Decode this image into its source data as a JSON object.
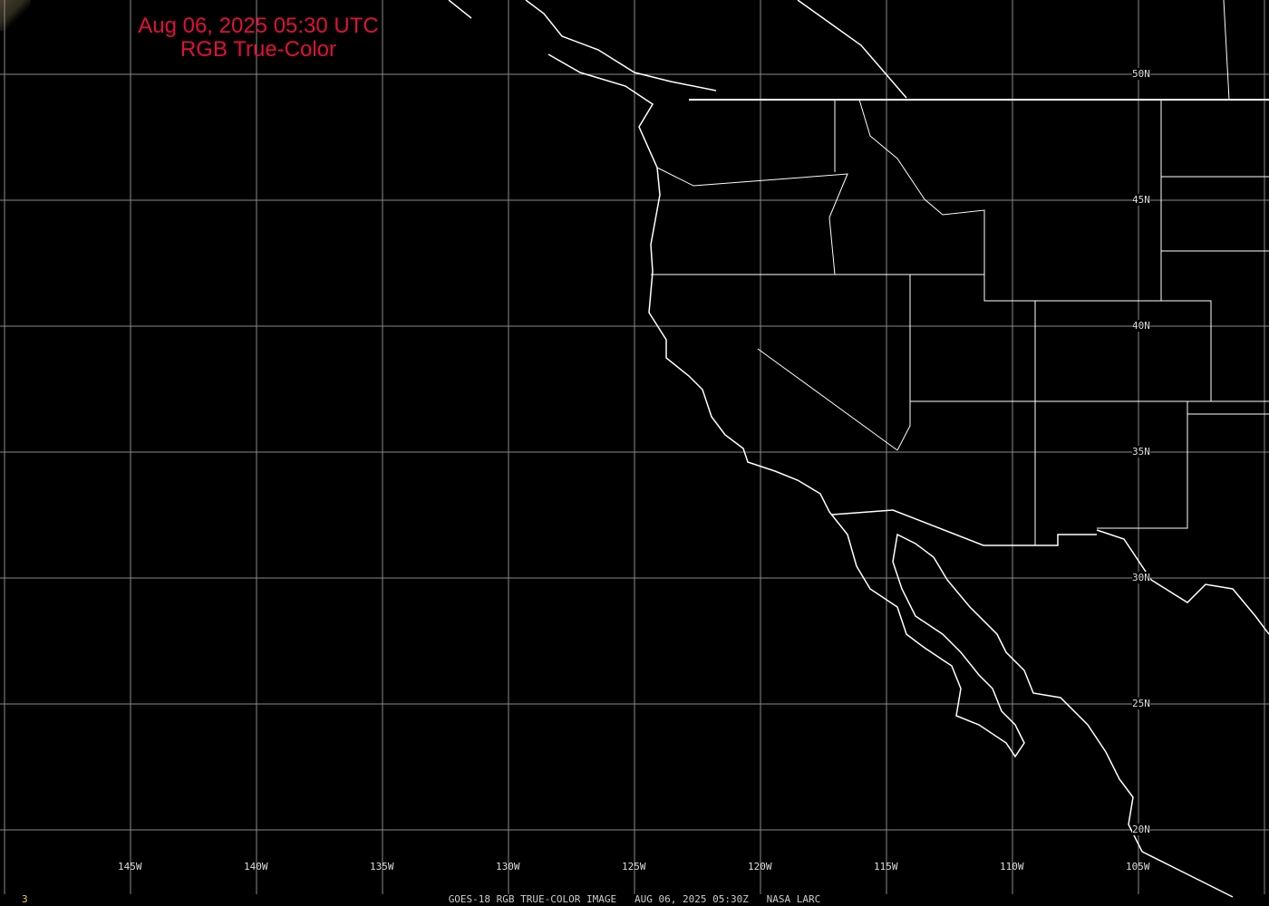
{
  "title": {
    "line1": "Aug 06, 2025 05:30 UTC",
    "line2": "RGB True-Color",
    "color": "#e0103a"
  },
  "longitude_labels": [
    "145W",
    "140W",
    "135W",
    "130W",
    "125W",
    "120W",
    "115W",
    "110W",
    "105W"
  ],
  "latitude_labels": [
    "50N",
    "45N",
    "40N",
    "35N",
    "30N",
    "25N",
    "20N"
  ],
  "footer": {
    "frame_number": "3",
    "caption": "GOES-18 RGB TRUE-COLOR IMAGE   AUG 06, 2025 05:30Z   NASA LARC"
  },
  "colors": {
    "background": "#000000",
    "grid": "#8a8a8a",
    "coastline": "#ffffff",
    "frame_number": "#e6d24a"
  }
}
